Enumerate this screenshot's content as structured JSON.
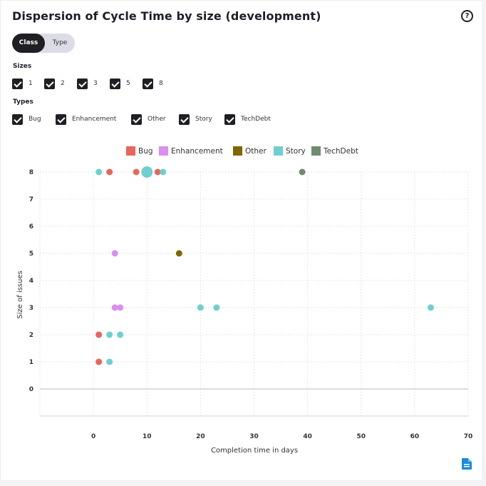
{
  "title": "Dispersion of Cycle Time by size (development)",
  "toggle": {
    "options": [
      "Class",
      "Type"
    ],
    "selected": "Class"
  },
  "sizes": {
    "label": "Sizes",
    "items": [
      "1",
      "2",
      "3",
      "5",
      "8"
    ]
  },
  "types": {
    "label": "Types",
    "items": [
      "Bug",
      "Enhancement",
      "Other",
      "Story",
      "TechDebt"
    ]
  },
  "colors": {
    "Bug": "#e8665a",
    "Enhancement": "#d98ef0",
    "Other": "#806600",
    "Story": "#6fcfcf",
    "TechDebt": "#6f8c6f"
  },
  "chart_data": {
    "type": "scatter",
    "xlabel": "Completion time in days",
    "ylabel": "Size of issues",
    "xlim": [
      -10,
      70
    ],
    "ylim": [
      -1,
      8
    ],
    "x_ticks": [
      0,
      10,
      20,
      30,
      40,
      50,
      60,
      70
    ],
    "y_ticks": [
      0,
      1,
      2,
      3,
      4,
      5,
      6,
      7,
      8
    ],
    "legend_position": "top-center",
    "grid": true,
    "series": [
      {
        "name": "Bug",
        "points": [
          [
            3,
            8
          ],
          [
            8,
            8
          ],
          [
            12,
            8
          ],
          [
            1,
            2
          ],
          [
            1,
            1
          ]
        ]
      },
      {
        "name": "Enhancement",
        "points": [
          [
            4,
            5
          ],
          [
            4,
            3
          ],
          [
            5,
            3
          ]
        ]
      },
      {
        "name": "Other",
        "points": [
          [
            16,
            5
          ]
        ]
      },
      {
        "name": "Story",
        "points": [
          [
            1,
            8
          ],
          [
            10,
            8,
            "large"
          ],
          [
            13,
            8
          ],
          [
            20,
            3
          ],
          [
            23,
            3
          ],
          [
            63,
            3
          ],
          [
            3,
            2
          ],
          [
            5,
            2
          ],
          [
            3,
            1
          ]
        ]
      },
      {
        "name": "TechDebt",
        "points": [
          [
            39,
            8
          ]
        ]
      }
    ]
  },
  "icons": {
    "help": "help-circle-icon",
    "export": "document-icon"
  }
}
